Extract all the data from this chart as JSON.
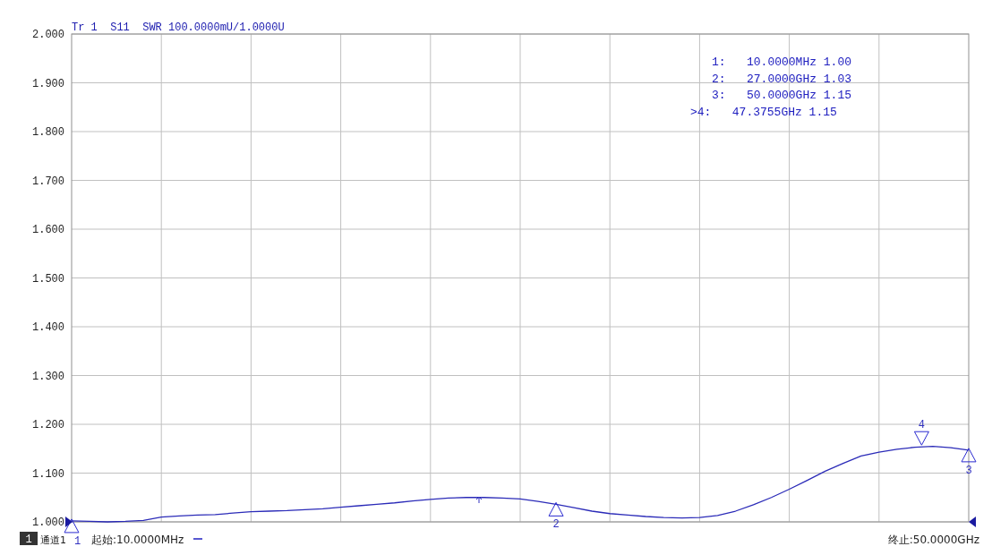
{
  "chart_data": {
    "type": "line",
    "title": "Tr 1  S11  SWR 100.0000mU/1.0000U",
    "categories": [
      null,
      null,
      null,
      null,
      null,
      null,
      null,
      null,
      null,
      null,
      null,
      null,
      null,
      null,
      null,
      null,
      null,
      null,
      null,
      null,
      null,
      null,
      null,
      null,
      null,
      null,
      null,
      null,
      null,
      null,
      null,
      null,
      null,
      null,
      null,
      null,
      null,
      null,
      null,
      null,
      null,
      null,
      null,
      null,
      null,
      null,
      null,
      null,
      null,
      null,
      null
    ],
    "series": [
      {
        "color": "#2b2bb8",
        "values": [
          1.002,
          1.001,
          1.0,
          1.001,
          1.003,
          1.01,
          1.012,
          1.014,
          1.015,
          1.018,
          1.021,
          1.022,
          1.023,
          1.025,
          1.027,
          1.03,
          1.033,
          1.036,
          1.039,
          1.043,
          1.046,
          1.049,
          1.05,
          1.05,
          1.049,
          1.047,
          1.042,
          1.036,
          1.029,
          1.022,
          1.017,
          1.014,
          1.011,
          1.009,
          1.008,
          1.009,
          1.013,
          1.022,
          1.035,
          1.05,
          1.067,
          1.085,
          1.104,
          1.12,
          1.135,
          1.143,
          1.149,
          1.153,
          1.155,
          1.152,
          1.147
        ]
      }
    ],
    "ylim": [
      1.0,
      2.0
    ],
    "yticks": [
      {
        "value": 1.0,
        "label": "1.000"
      },
      {
        "value": 1.1,
        "label": "1.100"
      },
      {
        "value": 1.2,
        "label": "1.200"
      },
      {
        "value": 1.3,
        "label": "1.300"
      },
      {
        "value": 1.4,
        "label": "1.400"
      },
      {
        "value": 1.5,
        "label": "1.500"
      },
      {
        "value": 1.6,
        "label": "1.600"
      },
      {
        "value": 1.7,
        "label": "1.700"
      },
      {
        "value": 1.8,
        "label": "1.800"
      },
      {
        "value": 1.9,
        "label": "1.900"
      },
      {
        "value": 2.0,
        "label": "2.000"
      }
    ],
    "grid": true,
    "marker": "none",
    "line_style": "solid",
    "annotations": [
      "1",
      "2",
      "3",
      "4",
      "1:   10.0000MHz 1.00",
      "2:   27.0000GHz 1.03",
      "3:   50.0000GHz 1.15",
      ">4:   47.3755GHz 1.15",
      "1",
      "通道1",
      "起始:10.0000MHz",
      "终止:50.0000GHz"
    ]
  }
}
